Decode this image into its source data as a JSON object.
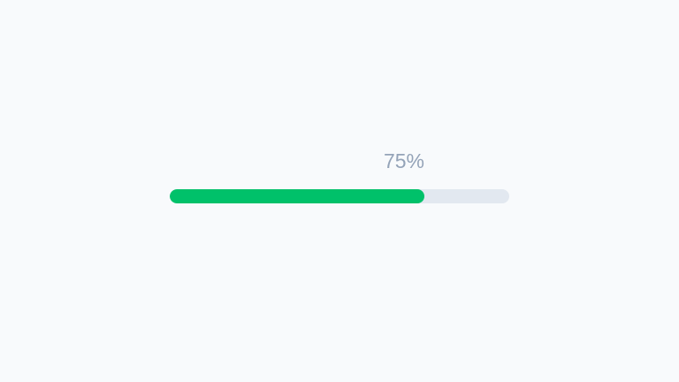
{
  "progress": {
    "percent": 75,
    "label": "75%",
    "fill_color": "#00c16a",
    "track_color": "#e2e8f0",
    "label_color": "#94a3b8"
  }
}
